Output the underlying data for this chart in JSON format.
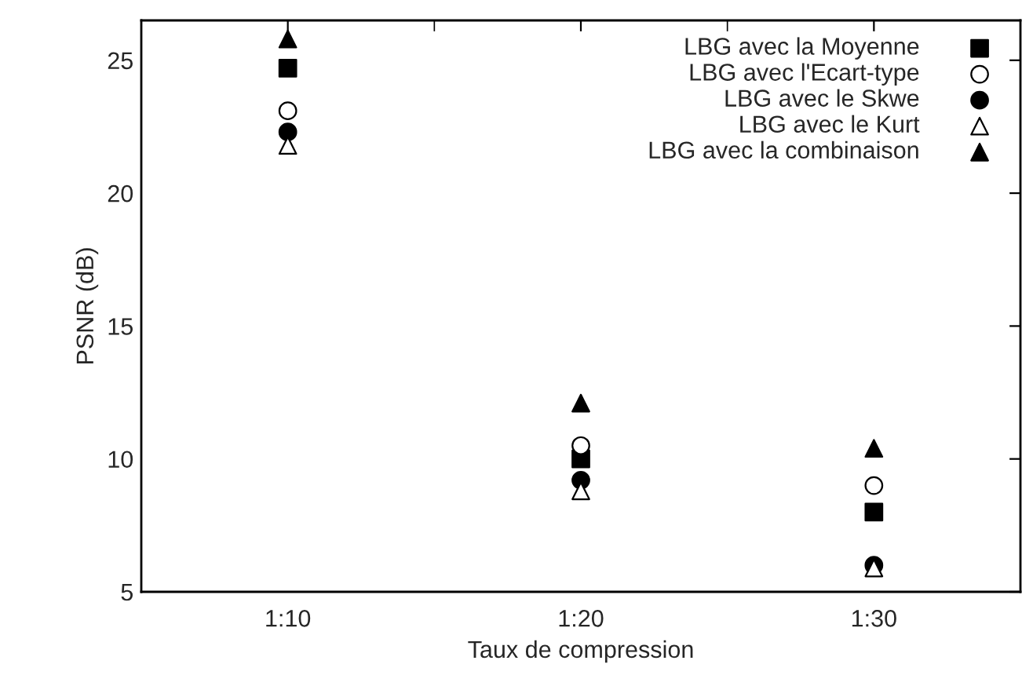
{
  "chart_data": {
    "type": "scatter",
    "xlabel": "Taux de compression",
    "ylabel": "PSNR (dB)",
    "categories": [
      "1:10",
      "1:20",
      "1:30"
    ],
    "ylim": [
      5,
      26.5
    ],
    "yticks": [
      5,
      10,
      15,
      20,
      25
    ],
    "grid": false,
    "legend": "top right",
    "series": [
      {
        "name": "LBG avec la Moyenne",
        "color": "#000000",
        "marker": "square",
        "values": [
          24.7,
          10.0,
          8.0
        ]
      },
      {
        "name": "LBG avec l'Ecart-type",
        "color": "#ffffff",
        "marker": "circle",
        "values": [
          23.1,
          10.5,
          9.0
        ]
      },
      {
        "name": "LBG avec le Skwe",
        "color": "#000000",
        "marker": "circle",
        "values": [
          22.3,
          9.2,
          6.0
        ]
      },
      {
        "name": "LBG avec le Kurt",
        "color": "#ffffff",
        "marker": "triangle",
        "values": [
          21.8,
          8.8,
          5.9
        ]
      },
      {
        "name": "LBG avec la combinaison",
        "color": "#000000",
        "marker": "triangle",
        "values": [
          25.8,
          12.1,
          10.4
        ]
      }
    ]
  }
}
